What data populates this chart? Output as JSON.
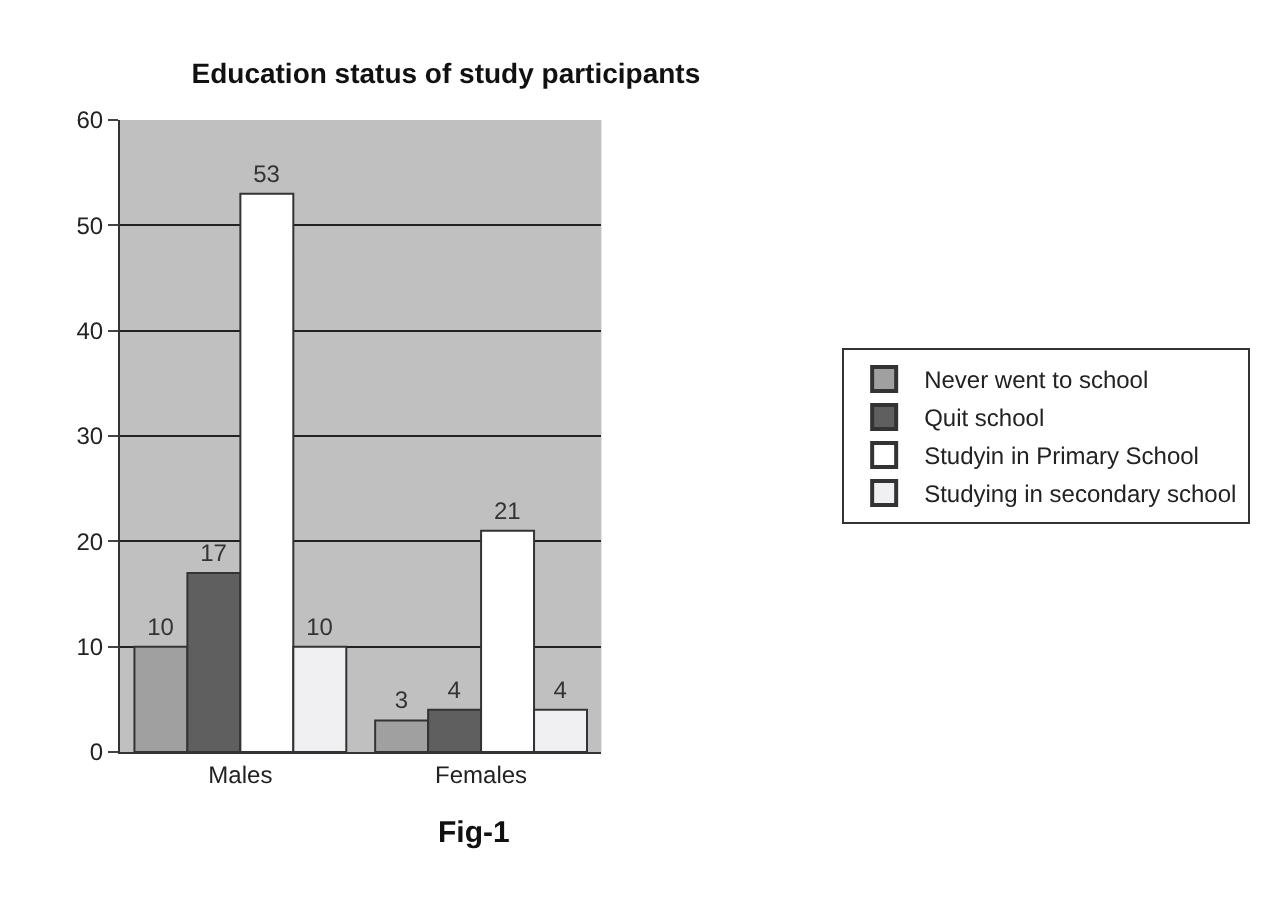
{
  "chart_data": {
    "type": "bar",
    "title": "Education status of study participants",
    "categories": [
      "Males",
      "Females"
    ],
    "series": [
      {
        "name": "Never went to school",
        "color": "#a0a0a0",
        "values": [
          10,
          3
        ]
      },
      {
        "name": "Quit school",
        "color": "#5f5f5f",
        "values": [
          17,
          4
        ]
      },
      {
        "name": "Studyin in Primary School",
        "color": "#ffffff",
        "values": [
          53,
          21
        ]
      },
      {
        "name": "Studying in secondary school",
        "color": "#f0f0f2",
        "values": [
          10,
          4
        ]
      }
    ],
    "ylim": [
      0,
      60
    ],
    "yticks": [
      0,
      10,
      20,
      30,
      40,
      50,
      60
    ],
    "grid": "y",
    "legend": "right",
    "data_labels": true,
    "annotations": [
      "Fig-1"
    ]
  }
}
